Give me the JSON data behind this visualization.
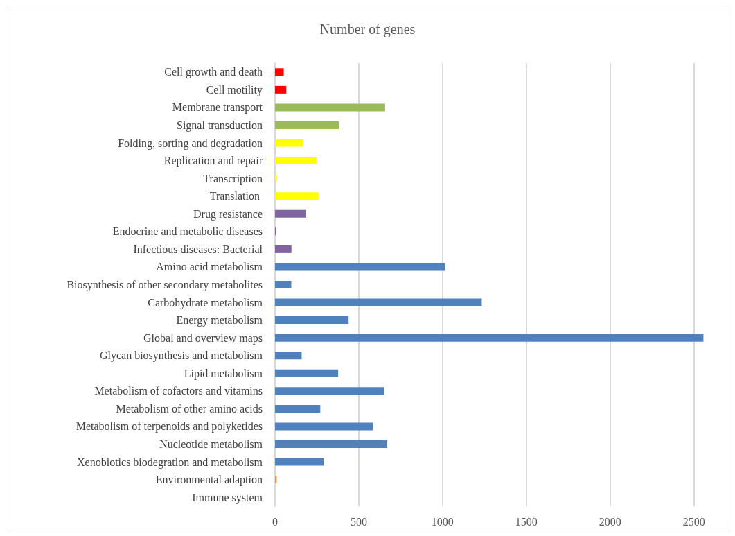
{
  "chart_data": {
    "type": "bar",
    "orientation": "horizontal",
    "title": "Number of genes",
    "categories": [
      "Cell growth and death",
      "Cell motility",
      "Membrane transport",
      "Signal transduction",
      "Folding, sorting and degradation",
      "Replication and repair",
      "Transcription",
      "Translation ",
      "Drug resistance",
      "Endocrine and metabolic diseases",
      "Infectious diseases: Bacterial",
      "Amino acid metabolism",
      "Biosynthesis of other secondary metabolites",
      "Carbohydrate metabolism",
      "Energy metabolism",
      "Global and overview maps",
      "Glycan biosynthesis and metabolism",
      "Lipid metabolism",
      "Metabolism of cofactors and vitamins",
      "Metabolism of other amino acids",
      "Metabolism of terpenoids and polyketides",
      "Nucleotide metabolism",
      "Xenobiotics biodegration and metabolism",
      "Environmental adaption",
      "Immune system"
    ],
    "values": [
      52,
      67,
      657,
      381,
      167,
      247,
      10,
      258,
      186,
      6,
      98,
      1015,
      97,
      1234,
      439,
      2557,
      159,
      377,
      653,
      270,
      585,
      670,
      290,
      10,
      0
    ],
    "colors": [
      "#ff0000",
      "#ff0000",
      "#9bbb59",
      "#9bbb59",
      "#ffff00",
      "#ffff00",
      "#ffff00",
      "#ffff00",
      "#8064a2",
      "#8064a2",
      "#8064a2",
      "#4f81bd",
      "#4f81bd",
      "#4f81bd",
      "#4f81bd",
      "#4f81bd",
      "#4f81bd",
      "#4f81bd",
      "#4f81bd",
      "#4f81bd",
      "#4f81bd",
      "#4f81bd",
      "#4f81bd",
      "#f79646",
      "#f79646"
    ],
    "xlim": [
      0,
      2700
    ],
    "xticks": [
      0,
      500,
      1000,
      1500,
      2000,
      2500
    ],
    "grid": "x"
  }
}
